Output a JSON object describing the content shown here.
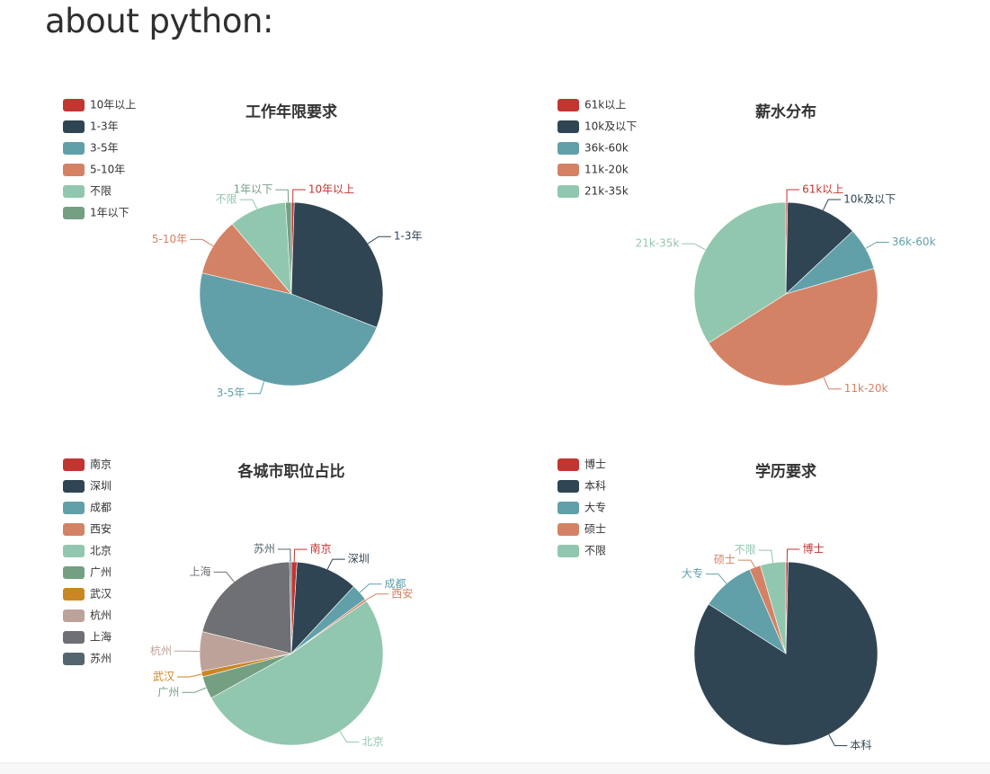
{
  "page": {
    "title": "about python:"
  },
  "colors": {
    "palette": [
      "#c23531",
      "#2f4554",
      "#61a0a8",
      "#d48265",
      "#91c7ae",
      "#749f83",
      "#ca8622",
      "#bda29a",
      "#6e7074",
      "#546570"
    ]
  },
  "chart_data": [
    {
      "type": "pie",
      "title": "工作年限要求",
      "legend_position": "top-left",
      "categories": [
        "10年以上",
        "1-3年",
        "3-5年",
        "5-10年",
        "不限",
        "1年以下"
      ],
      "values": [
        0.5,
        30,
        47,
        10,
        10,
        1
      ]
    },
    {
      "type": "pie",
      "title": "薪水分布",
      "legend_position": "top-left",
      "categories": [
        "61k以上",
        "10k及以下",
        "36k-60k",
        "11k-20k",
        "21k-35k"
      ],
      "values": [
        0.3,
        12.7,
        7.5,
        45.5,
        34
      ]
    },
    {
      "type": "pie",
      "title": "各城市职位占比",
      "legend_position": "top-left",
      "categories": [
        "南京",
        "深圳",
        "成都",
        "西安",
        "北京",
        "广州",
        "武汉",
        "杭州",
        "上海",
        "苏州"
      ],
      "values": [
        1,
        11,
        3,
        0.4,
        52,
        4,
        1,
        7,
        21,
        0.3
      ]
    },
    {
      "type": "pie",
      "title": "学历要求",
      "legend_position": "top-left",
      "categories": [
        "博士",
        "本科",
        "大专",
        "硕士",
        "不限"
      ],
      "values": [
        0.4,
        84,
        9.5,
        2,
        4.5
      ]
    }
  ]
}
